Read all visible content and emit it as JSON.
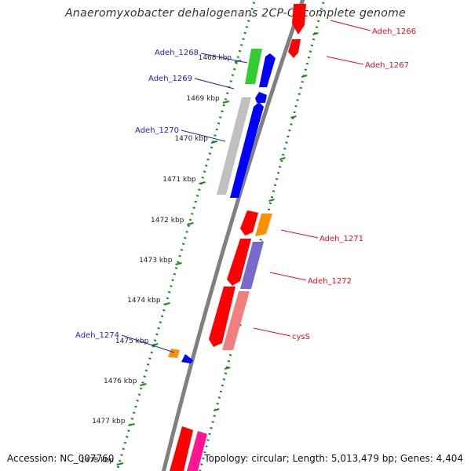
{
  "title": "Anaeromyxobacter dehalogenans 2CP-C, complete genome",
  "footer": {
    "accession": "Accession: NC_007760",
    "summary": "Topology: circular; Length: 5,013,479 bp; Genes: 4,404"
  },
  "ticks": [
    "1468 kbp",
    "1469 kbp",
    "1470 kbp",
    "1471 kbp",
    "1472 kbp",
    "1473 kbp",
    "1474 kbp",
    "1475 kbp",
    "1476 kbp",
    "1477 kbp",
    "1478 kbp"
  ],
  "colors": {
    "backbone": "#808080",
    "tick_dots": "#1a8a1a",
    "label_forward": "#2020c0",
    "label_reverse": "#e0101a",
    "red": "#ff0000",
    "blue": "#0000ff",
    "green": "#33cc33",
    "gray": "#c0c0c0",
    "orange": "#ff9000",
    "purple": "#7b68cc",
    "pink": "#f08080",
    "magenta": "#ff1493"
  },
  "labels": {
    "forward": [
      "Adeh_1268",
      "Adeh_1269",
      "Adeh_1270",
      "Adeh_1274"
    ],
    "reverse": [
      "Adeh_1266",
      "Adeh_1267",
      "Adeh_1271",
      "Adeh_1272",
      "cysS"
    ]
  }
}
